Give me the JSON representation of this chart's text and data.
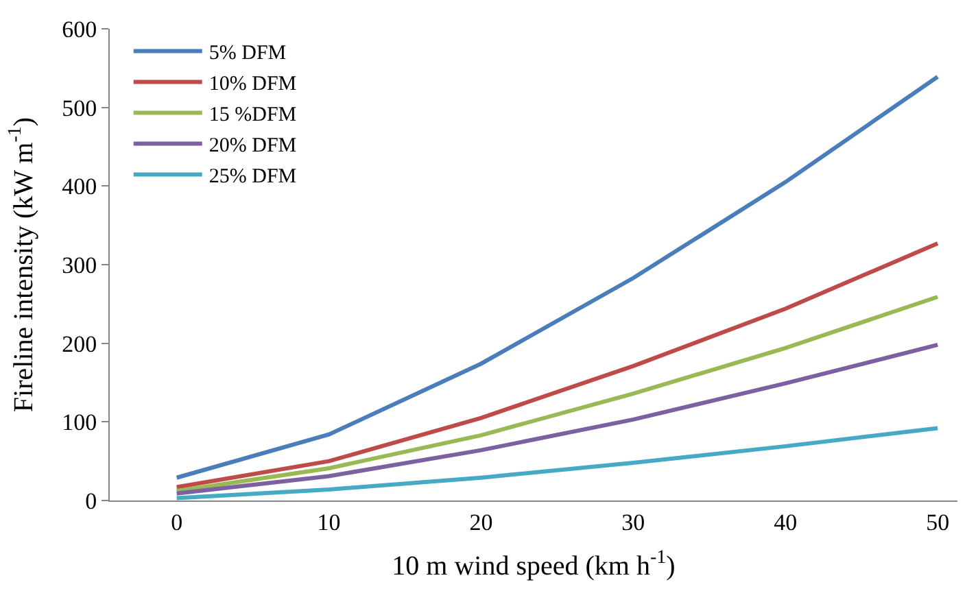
{
  "chart_data": {
    "type": "line",
    "xlabel": "10 m wind speed (km h$^{-1}$)",
    "ylabel": "Fireline intensity (kW m$^{-1}$)",
    "categories": [
      "0",
      "10",
      "20",
      "30",
      "40",
      "50"
    ],
    "series": [
      {
        "name": "5% DFM",
        "color": "#4a7ebb",
        "values": [
          29,
          84,
          174,
          283,
          405,
          539
        ]
      },
      {
        "name": "10% DFM",
        "color": "#be4b48",
        "values": [
          17,
          50,
          105,
          171,
          244,
          327
        ]
      },
      {
        "name": "15 %DFM",
        "color": "#98b954",
        "values": [
          12,
          41,
          83,
          136,
          194,
          259
        ]
      },
      {
        "name": "20% DFM",
        "color": "#7d60a0",
        "values": [
          9,
          31,
          64,
          103,
          149,
          198
        ]
      },
      {
        "name": "25% DFM",
        "color": "#46aac5",
        "values": [
          3,
          14,
          29,
          48,
          69,
          92
        ]
      }
    ],
    "ylim": [
      0,
      600
    ],
    "yticks": [
      0,
      100,
      200,
      300,
      400,
      500,
      600
    ],
    "legend": "top left",
    "marker": "none",
    "line_style": "solid"
  }
}
